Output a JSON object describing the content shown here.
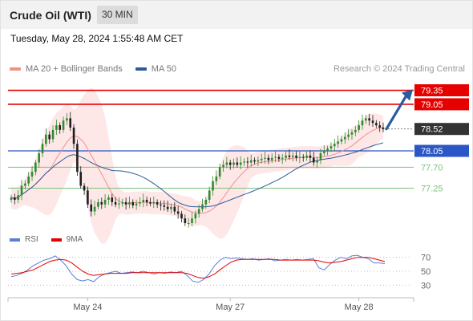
{
  "header": {
    "title": "Crude Oil (WTI)",
    "timeframe": "30 MIN",
    "datetime": "Tuesday, May 28, 2024 1:55:48 AM CET"
  },
  "legend": {
    "items": [
      {
        "label": "MA 20 + Bollinger Bands",
        "color": "#f4908a"
      },
      {
        "label": "MA 50",
        "color": "#2f5a9a"
      }
    ],
    "credit": "Research © 2024 Trading Central"
  },
  "colors": {
    "up": "#2e8b2e",
    "down": "#1e1e1e",
    "resistance": "#e60000",
    "support": "#7cc17c",
    "pivot": "#2a56c6",
    "current": "#333333",
    "band_fill": "#fde4e4",
    "ma20": "#f4908a",
    "ma50": "#2f5a9a",
    "rsi": "#5b7fd6",
    "rsi_ma": "#e60000",
    "arrow": "#2a5aa0"
  },
  "chart_data": [
    {
      "type": "candlestick",
      "title": "Crude Oil (WTI)",
      "timeframe": "30 MIN",
      "ylim": [
        76.5,
        79.6
      ],
      "x_ticks": [
        "May 24",
        "May 27",
        "May 28"
      ],
      "levels": [
        {
          "value": 79.35,
          "label": "79.35",
          "kind": "resistance"
        },
        {
          "value": 79.05,
          "label": "79.05",
          "kind": "resistance"
        },
        {
          "value": 78.52,
          "label": "78.52",
          "kind": "current"
        },
        {
          "value": 78.05,
          "label": "78.05",
          "kind": "pivot"
        },
        {
          "value": 77.7,
          "label": "77.70",
          "kind": "support"
        },
        {
          "value": 77.25,
          "label": "77.25",
          "kind": "support"
        }
      ],
      "series": [
        {
          "name": "MA 20 + Bollinger Bands"
        },
        {
          "name": "MA 50"
        }
      ],
      "close": [
        77.05,
        77.0,
        77.1,
        77.3,
        77.35,
        77.5,
        77.6,
        77.8,
        78.0,
        78.2,
        78.4,
        78.3,
        78.5,
        78.6,
        78.5,
        78.7,
        78.75,
        78.55,
        78.2,
        77.6,
        77.3,
        77.2,
        76.9,
        76.75,
        76.85,
        76.95,
        76.9,
        77.0,
        77.05,
        76.95,
        76.9,
        76.92,
        76.95,
        76.9,
        76.95,
        76.88,
        76.92,
        76.95,
        77.0,
        76.95,
        76.92,
        76.95,
        76.9,
        76.88,
        76.85,
        76.8,
        76.85,
        76.75,
        76.7,
        76.6,
        76.5,
        76.5,
        76.6,
        76.7,
        76.8,
        76.9,
        77.0,
        77.2,
        77.4,
        77.5,
        77.7,
        77.75,
        77.8,
        77.75,
        77.8,
        77.75,
        77.8,
        77.82,
        77.8,
        77.85,
        77.82,
        77.85,
        77.88,
        77.9,
        77.85,
        77.9,
        77.92,
        77.88,
        77.9,
        77.95,
        77.92,
        77.95,
        77.9,
        77.92,
        77.9,
        77.95,
        77.9,
        77.8,
        77.85,
        78.0,
        78.05,
        78.1,
        78.15,
        78.2,
        78.25,
        78.3,
        78.35,
        78.4,
        78.45,
        78.5,
        78.6,
        78.7,
        78.75,
        78.7,
        78.65,
        78.6,
        78.55,
        78.52
      ],
      "x_tick_index": [
        22,
        63,
        100
      ]
    },
    {
      "type": "line",
      "title": "RSI",
      "ylim": [
        20,
        80
      ],
      "y_ticks": [
        70,
        50,
        30
      ],
      "series": [
        {
          "name": "RSI",
          "values": [
            42,
            44,
            47,
            52,
            58,
            62,
            66,
            68,
            72,
            66,
            58,
            46,
            38,
            36,
            38,
            35,
            42,
            46,
            48,
            50,
            47,
            48,
            49,
            48,
            50,
            48,
            46,
            48,
            47,
            49,
            48,
            50,
            44,
            36,
            34,
            38,
            46,
            58,
            66,
            70,
            68,
            69,
            68,
            67,
            68,
            66,
            67,
            68,
            65,
            66,
            67,
            66,
            67,
            66,
            67,
            68,
            55,
            52,
            60,
            66,
            70,
            68,
            72,
            73,
            70,
            68,
            62,
            62,
            61
          ]
        },
        {
          "name": "9MA",
          "values": [
            46,
            47,
            48,
            50,
            52,
            56,
            60,
            64,
            66,
            67,
            66,
            62,
            56,
            50,
            46,
            44,
            45,
            46,
            47,
            47,
            47,
            47,
            48,
            48,
            48,
            48,
            48,
            48,
            48,
            48,
            48,
            48,
            47,
            44,
            41,
            40,
            42,
            46,
            52,
            58,
            63,
            66,
            67,
            67,
            67,
            67,
            67,
            67,
            67,
            66,
            66,
            66,
            66,
            66,
            66,
            66,
            65,
            63,
            62,
            63,
            64,
            66,
            68,
            70,
            70,
            70,
            68,
            66,
            64
          ]
        }
      ]
    }
  ]
}
